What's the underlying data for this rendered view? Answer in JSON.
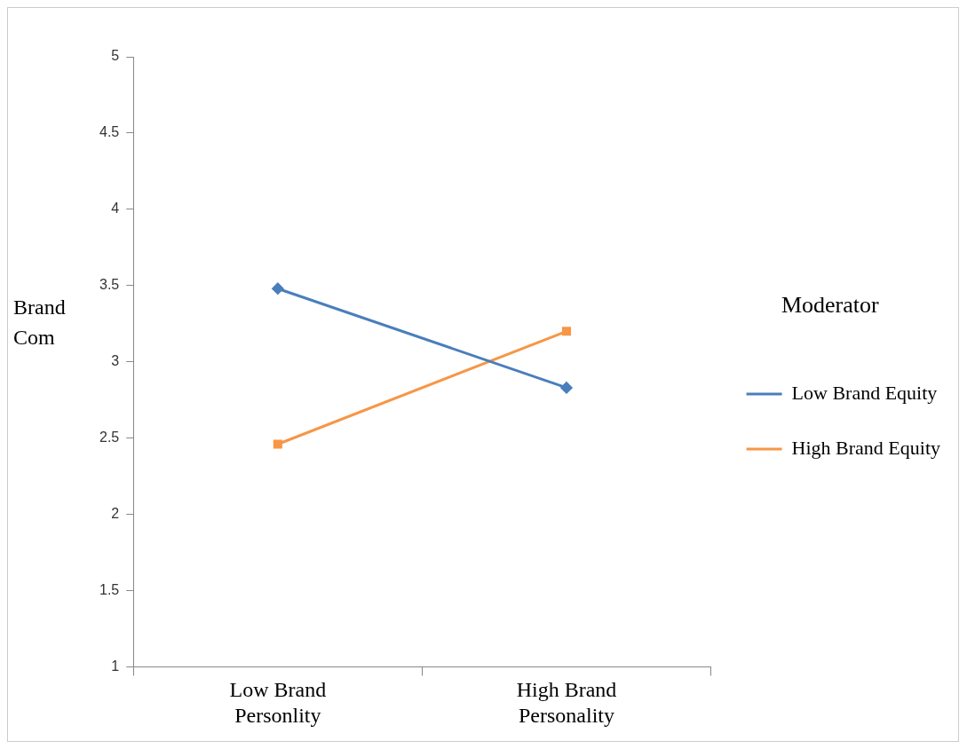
{
  "chart_data": {
    "type": "line",
    "ylabel": "Brand Com",
    "legend_title": "Moderator",
    "categories": [
      "Low Brand Personlity",
      "High Brand Personality"
    ],
    "series": [
      {
        "name": "Low Brand Equity",
        "color": "#4a7ebb",
        "values": [
          3.48,
          2.83
        ],
        "marker": "diamond"
      },
      {
        "name": "High Brand Equity",
        "color": "#f79646",
        "values": [
          2.46,
          3.2
        ],
        "marker": "square"
      }
    ],
    "ylim": [
      1,
      5
    ],
    "yticks": [
      1,
      1.5,
      2,
      2.5,
      3,
      3.5,
      4,
      4.5,
      5
    ],
    "grid": false,
    "legend": "right",
    "line_style": "solid"
  }
}
